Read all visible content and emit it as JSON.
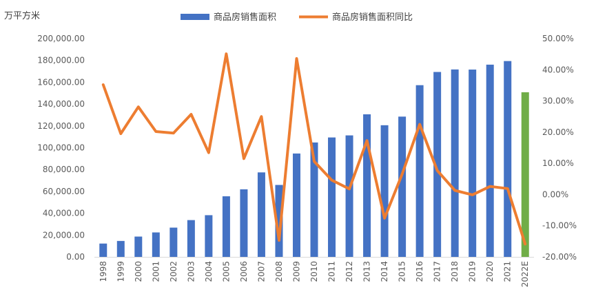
{
  "chart_data": {
    "type": "bar",
    "unit_label": "万平方米",
    "categories": [
      "1998",
      "1999",
      "2000",
      "2001",
      "2002",
      "2003",
      "2004",
      "2005",
      "2006",
      "2007",
      "2008",
      "2009",
      "2010",
      "2011",
      "2012",
      "2013",
      "2014",
      "2015",
      "2016",
      "2017",
      "2018",
      "2019",
      "2020",
      "2021",
      "2022E"
    ],
    "series": [
      {
        "name": "商品房销售面积",
        "kind": "bar",
        "axis": "left",
        "color": "#4472C4",
        "forecast_color": "#70AD47",
        "values": [
          12200,
          14600,
          18600,
          22400,
          26800,
          33700,
          38200,
          55500,
          61900,
          77400,
          65900,
          94700,
          104800,
          109400,
          111300,
          130600,
          120600,
          128500,
          157300,
          169400,
          171700,
          171600,
          176100,
          179400,
          150800
        ]
      },
      {
        "name": "商品房销售面积同比",
        "kind": "line",
        "axis": "right",
        "color": "#ED7D31",
        "values": [
          35.2,
          19.5,
          28.1,
          20.2,
          19.7,
          25.7,
          13.4,
          45.1,
          11.5,
          25.0,
          -14.7,
          43.6,
          10.6,
          4.6,
          1.8,
          17.3,
          -7.6,
          6.5,
          22.5,
          7.7,
          1.3,
          -0.1,
          2.6,
          1.9,
          -15.9
        ]
      }
    ],
    "ylim": [
      0,
      200000
    ],
    "y_ticks": [
      "0.00",
      "20,000.00",
      "40,000.00",
      "60,000.00",
      "80,000.00",
      "100,000.00",
      "120,000.00",
      "140,000.00",
      "160,000.00",
      "180,000.00",
      "200,000.00"
    ],
    "y2lim": [
      -20,
      50
    ],
    "y2_ticks": [
      "-20.00%",
      "-10.00%",
      "0.00%",
      "10.00%",
      "20.00%",
      "30.00%",
      "40.00%",
      "50.00%"
    ],
    "legend_position": "top-center",
    "grid": false
  }
}
